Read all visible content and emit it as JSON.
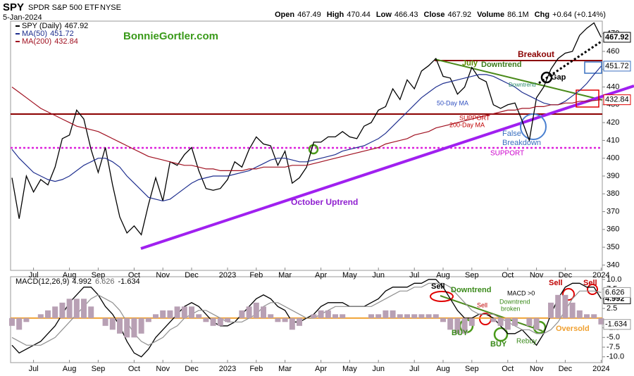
{
  "header": {
    "symbol": "SPY",
    "name": "SPDR S&P 500 ETF",
    "exchange": "NYSE",
    "date": "5-Jan-2024",
    "watermark": "BonnieGortler.com",
    "quote": [
      {
        "label": "Open",
        "value": 467.49
      },
      {
        "label": "High",
        "value": 470.44
      },
      {
        "label": "Low",
        "value": 466.43
      },
      {
        "label": "Close",
        "value": 467.92
      },
      {
        "label": "Volume",
        "value": "86.1M"
      },
      {
        "label": "Chg",
        "value": "+0.64 (+0.14%)"
      }
    ]
  },
  "chart_data": [
    {
      "type": "line",
      "categories": [
        null,
        null,
        null,
        "Jul",
        null,
        null,
        null,
        null,
        "Aug",
        null,
        null,
        null,
        "Sep",
        null,
        null,
        null,
        null,
        "Oct",
        null,
        null,
        null,
        "Nov",
        null,
        null,
        null,
        "Dec",
        null,
        null,
        null,
        null,
        "2023",
        null,
        null,
        null,
        "Feb",
        null,
        null,
        null,
        "Mar",
        null,
        null,
        null,
        null,
        "Apr",
        null,
        null,
        null,
        "May",
        null,
        null,
        null,
        "Jun",
        null,
        null,
        null,
        null,
        "Jul",
        null,
        null,
        null,
        "Aug",
        null,
        null,
        null,
        "Sep",
        null,
        null,
        null,
        null,
        "Oct",
        null,
        null,
        null,
        "Nov",
        null,
        null,
        null,
        "Dec",
        null,
        null,
        null,
        null,
        "2024"
      ],
      "ylim": [
        337,
        477
      ],
      "yticks": [
        340,
        350,
        360,
        370,
        380,
        390,
        400,
        410,
        420,
        430,
        440,
        450,
        460,
        470
      ],
      "grid": false,
      "series": [
        {
          "name": "SPY (Daily)",
          "color": "#000000",
          "values": [
            389,
            366,
            390,
            381,
            388,
            385,
            395,
            411,
            413,
            427,
            422,
            405,
            392,
            406,
            385,
            367,
            358,
            362,
            357,
            374,
            389,
            376,
            398,
            396,
            402,
            406,
            393,
            383,
            382,
            383,
            388,
            398,
            395,
            405,
            412,
            408,
            407,
            396,
            404,
            386,
            389,
            395,
            409,
            409,
            412,
            412,
            415,
            412,
            411,
            418,
            420,
            427,
            429,
            439,
            433,
            444,
            439,
            449,
            452,
            456,
            446,
            445,
            436,
            440,
            451,
            445,
            443,
            430,
            428,
            430,
            431,
            421,
            410,
            434,
            440,
            450,
            456,
            459,
            460,
            469,
            473,
            476,
            467.92
          ]
        },
        {
          "name": "MA(50)",
          "color": "#1f2f8f",
          "values": [
            405,
            400,
            396,
            392,
            390,
            388,
            387,
            388,
            390,
            393,
            396,
            398,
            400,
            400,
            398,
            395,
            390,
            386,
            382,
            378,
            377,
            376,
            377,
            380,
            383,
            386,
            388,
            389,
            390,
            390,
            390,
            391,
            392,
            393,
            395,
            397,
            399,
            400,
            400,
            399,
            398,
            398,
            399,
            400,
            401,
            402,
            404,
            405,
            406,
            407,
            409,
            411,
            414,
            418,
            422,
            426,
            430,
            434,
            437,
            440,
            442,
            443,
            444,
            445,
            446,
            447,
            447,
            446,
            444,
            442,
            440,
            437,
            435,
            433,
            431,
            430,
            430,
            432,
            435,
            438,
            442,
            447,
            451.72
          ]
        },
        {
          "name": "MA(200)",
          "color": "#a01020",
          "values": [
            440,
            437,
            434,
            431,
            428,
            426,
            424,
            422,
            420,
            418,
            417,
            416,
            415,
            413,
            411,
            409,
            407,
            405,
            403,
            401,
            400,
            399,
            398,
            397,
            396,
            396,
            395,
            394,
            394,
            393,
            393,
            393,
            393,
            394,
            394,
            395,
            395,
            395,
            395,
            396,
            396,
            396,
            397,
            398,
            399,
            400,
            401,
            402,
            403,
            404,
            405,
            406,
            408,
            409,
            410,
            411,
            413,
            414,
            415,
            417,
            418,
            419,
            420,
            421,
            422,
            423,
            424,
            425,
            426,
            427,
            427,
            428,
            428,
            429,
            429,
            430,
            430,
            431,
            431,
            432,
            432,
            432.4,
            432.84
          ]
        }
      ],
      "annotations": [
        {
          "text": "Breakout",
          "color": "#8b0000"
        },
        {
          "text": "July",
          "color": "#5a8a00"
        },
        {
          "text": "Downtrend",
          "color": "#3a7a1a"
        },
        {
          "text": "Gap",
          "color": "#000000"
        },
        {
          "text": "Downtrend",
          "color": "#2a8a6a"
        },
        {
          "text": "50-Day MA",
          "color": "#3050c0"
        },
        {
          "text": "SUPPORT",
          "color": "#c00000"
        },
        {
          "text": "200-Day MA",
          "color": "#c00000"
        },
        {
          "text": "False",
          "color": "#3a70c0"
        },
        {
          "text": "Breakdown",
          "color": "#3a70c0"
        },
        {
          "text": "SUPPORT",
          "color": "#cc00cc"
        },
        {
          "text": "October Uptrend",
          "color": "#9020d0"
        }
      ]
    },
    {
      "type": "line",
      "categories": [
        null,
        null,
        null,
        "Jul",
        null,
        null,
        null,
        null,
        "Aug",
        null,
        null,
        null,
        "Sep",
        null,
        null,
        null,
        null,
        "Oct",
        null,
        null,
        null,
        "Nov",
        null,
        null,
        null,
        "Dec",
        null,
        null,
        null,
        null,
        "2023",
        null,
        null,
        null,
        "Feb",
        null,
        null,
        null,
        "Mar",
        null,
        null,
        null,
        null,
        "Apr",
        null,
        null,
        null,
        "May",
        null,
        null,
        null,
        "Jun",
        null,
        null,
        null,
        null,
        "Jul",
        null,
        null,
        null,
        "Aug",
        null,
        null,
        null,
        "Sep",
        null,
        null,
        null,
        null,
        "Oct",
        null,
        null,
        null,
        "Nov",
        null,
        null,
        null,
        "Dec",
        null,
        null,
        null,
        null,
        "2024"
      ],
      "ylim": [
        -11.5,
        10.7
      ],
      "yticks": [
        {
          "value": 10,
          "label": "10.0"
        },
        {
          "value": 7.5,
          "label": "7.5"
        },
        {
          "value": 5,
          "label": "5.0"
        },
        {
          "value": 2.5,
          "label": "2.5"
        },
        {
          "value": -2.5,
          "label": "-2.5"
        },
        {
          "value": -5,
          "label": "-5.0"
        },
        {
          "value": -7.5,
          "label": "-7.5"
        },
        {
          "value": -10,
          "label": "-10.0"
        }
      ],
      "zero_line": {
        "value": 0,
        "color": "#f0a030"
      },
      "series": [
        {
          "name": "MACD(12,26,9)",
          "color": "#000000",
          "style": "line",
          "values": [
            -7,
            -9,
            -8,
            -7,
            -6,
            -4,
            -2,
            1,
            4,
            6,
            8,
            8,
            6,
            3,
            1,
            -2,
            -6,
            -9,
            -10,
            -8,
            -5,
            -3,
            -1,
            1,
            3,
            4,
            3,
            1,
            -1,
            -2,
            -2,
            -1,
            1,
            3,
            5,
            6,
            5,
            3,
            2,
            -1,
            -1,
            0,
            1,
            3,
            4,
            4,
            4,
            3,
            3,
            3,
            4,
            5,
            7,
            8,
            8,
            8,
            9,
            9,
            10,
            10,
            8,
            5,
            2,
            0,
            0,
            1,
            1,
            0,
            -2,
            -4,
            -4,
            -3,
            -5,
            -7,
            -4,
            1,
            5,
            8,
            9,
            9,
            8,
            8,
            4.992
          ]
        },
        {
          "color": "#909090",
          "style": "line",
          "values": [
            -5,
            -6,
            -7,
            -7,
            -7,
            -6,
            -5,
            -3,
            -1,
            1,
            3,
            5,
            6,
            5,
            4,
            2,
            -1,
            -4,
            -6,
            -7,
            -6,
            -5,
            -3,
            -2,
            0,
            1,
            2,
            2,
            1,
            0,
            -1,
            -1,
            -1,
            0,
            1,
            3,
            4,
            4,
            3,
            2,
            1,
            0,
            0,
            1,
            2,
            3,
            3,
            3,
            3,
            3,
            3,
            4,
            5,
            6,
            7,
            7,
            8,
            8,
            9,
            9,
            9,
            8,
            6,
            4,
            2,
            1,
            1,
            1,
            0,
            -1,
            -2,
            -3,
            -3,
            -4,
            -4,
            -3,
            -1,
            2,
            5,
            7,
            7,
            7,
            6.626
          ]
        },
        {
          "color": "#b8a0b4",
          "style": "bar",
          "values": [
            -2,
            -3,
            -1,
            0,
            1,
            2,
            3,
            4,
            5,
            5,
            5,
            3,
            0,
            -2,
            -3,
            -4,
            -5,
            -5,
            -4,
            -1,
            1,
            2,
            2,
            3,
            3,
            3,
            1,
            -1,
            -2,
            -2,
            -1,
            0,
            2,
            3,
            4,
            3,
            1,
            -1,
            -1,
            -3,
            -2,
            0,
            1,
            2,
            2,
            1,
            1,
            0,
            0,
            0,
            1,
            1,
            2,
            2,
            1,
            1,
            1,
            1,
            1,
            1,
            -1,
            -3,
            -4,
            -4,
            -2,
            0,
            0,
            -1,
            -2,
            -3,
            -2,
            0,
            -2,
            -3,
            0,
            4,
            6,
            6,
            4,
            2,
            1,
            1,
            -1.634
          ]
        }
      ],
      "annotations": [
        {
          "text": "Sell",
          "color": "#000000"
        },
        {
          "text": "Downtrend",
          "color": "#3a8a1a"
        },
        {
          "text": "Sell",
          "color": "#c00000"
        },
        {
          "text": "MACD >0",
          "color": "#000000"
        },
        {
          "text": "Downtrend",
          "color": "#3a8a1a"
        },
        {
          "text": "broken",
          "color": "#3a8a1a"
        },
        {
          "text": "Sell",
          "color": "#c00000"
        },
        {
          "text": "Sell",
          "color": "#c00000"
        },
        {
          "text": "BUY",
          "color": "#3a8a1a"
        },
        {
          "text": "BUY",
          "color": "#3a8a1a"
        },
        {
          "text": "Rebuy",
          "color": "#3a8a1a"
        },
        {
          "text": "Oversold",
          "color": "#f0a030"
        }
      ]
    }
  ]
}
